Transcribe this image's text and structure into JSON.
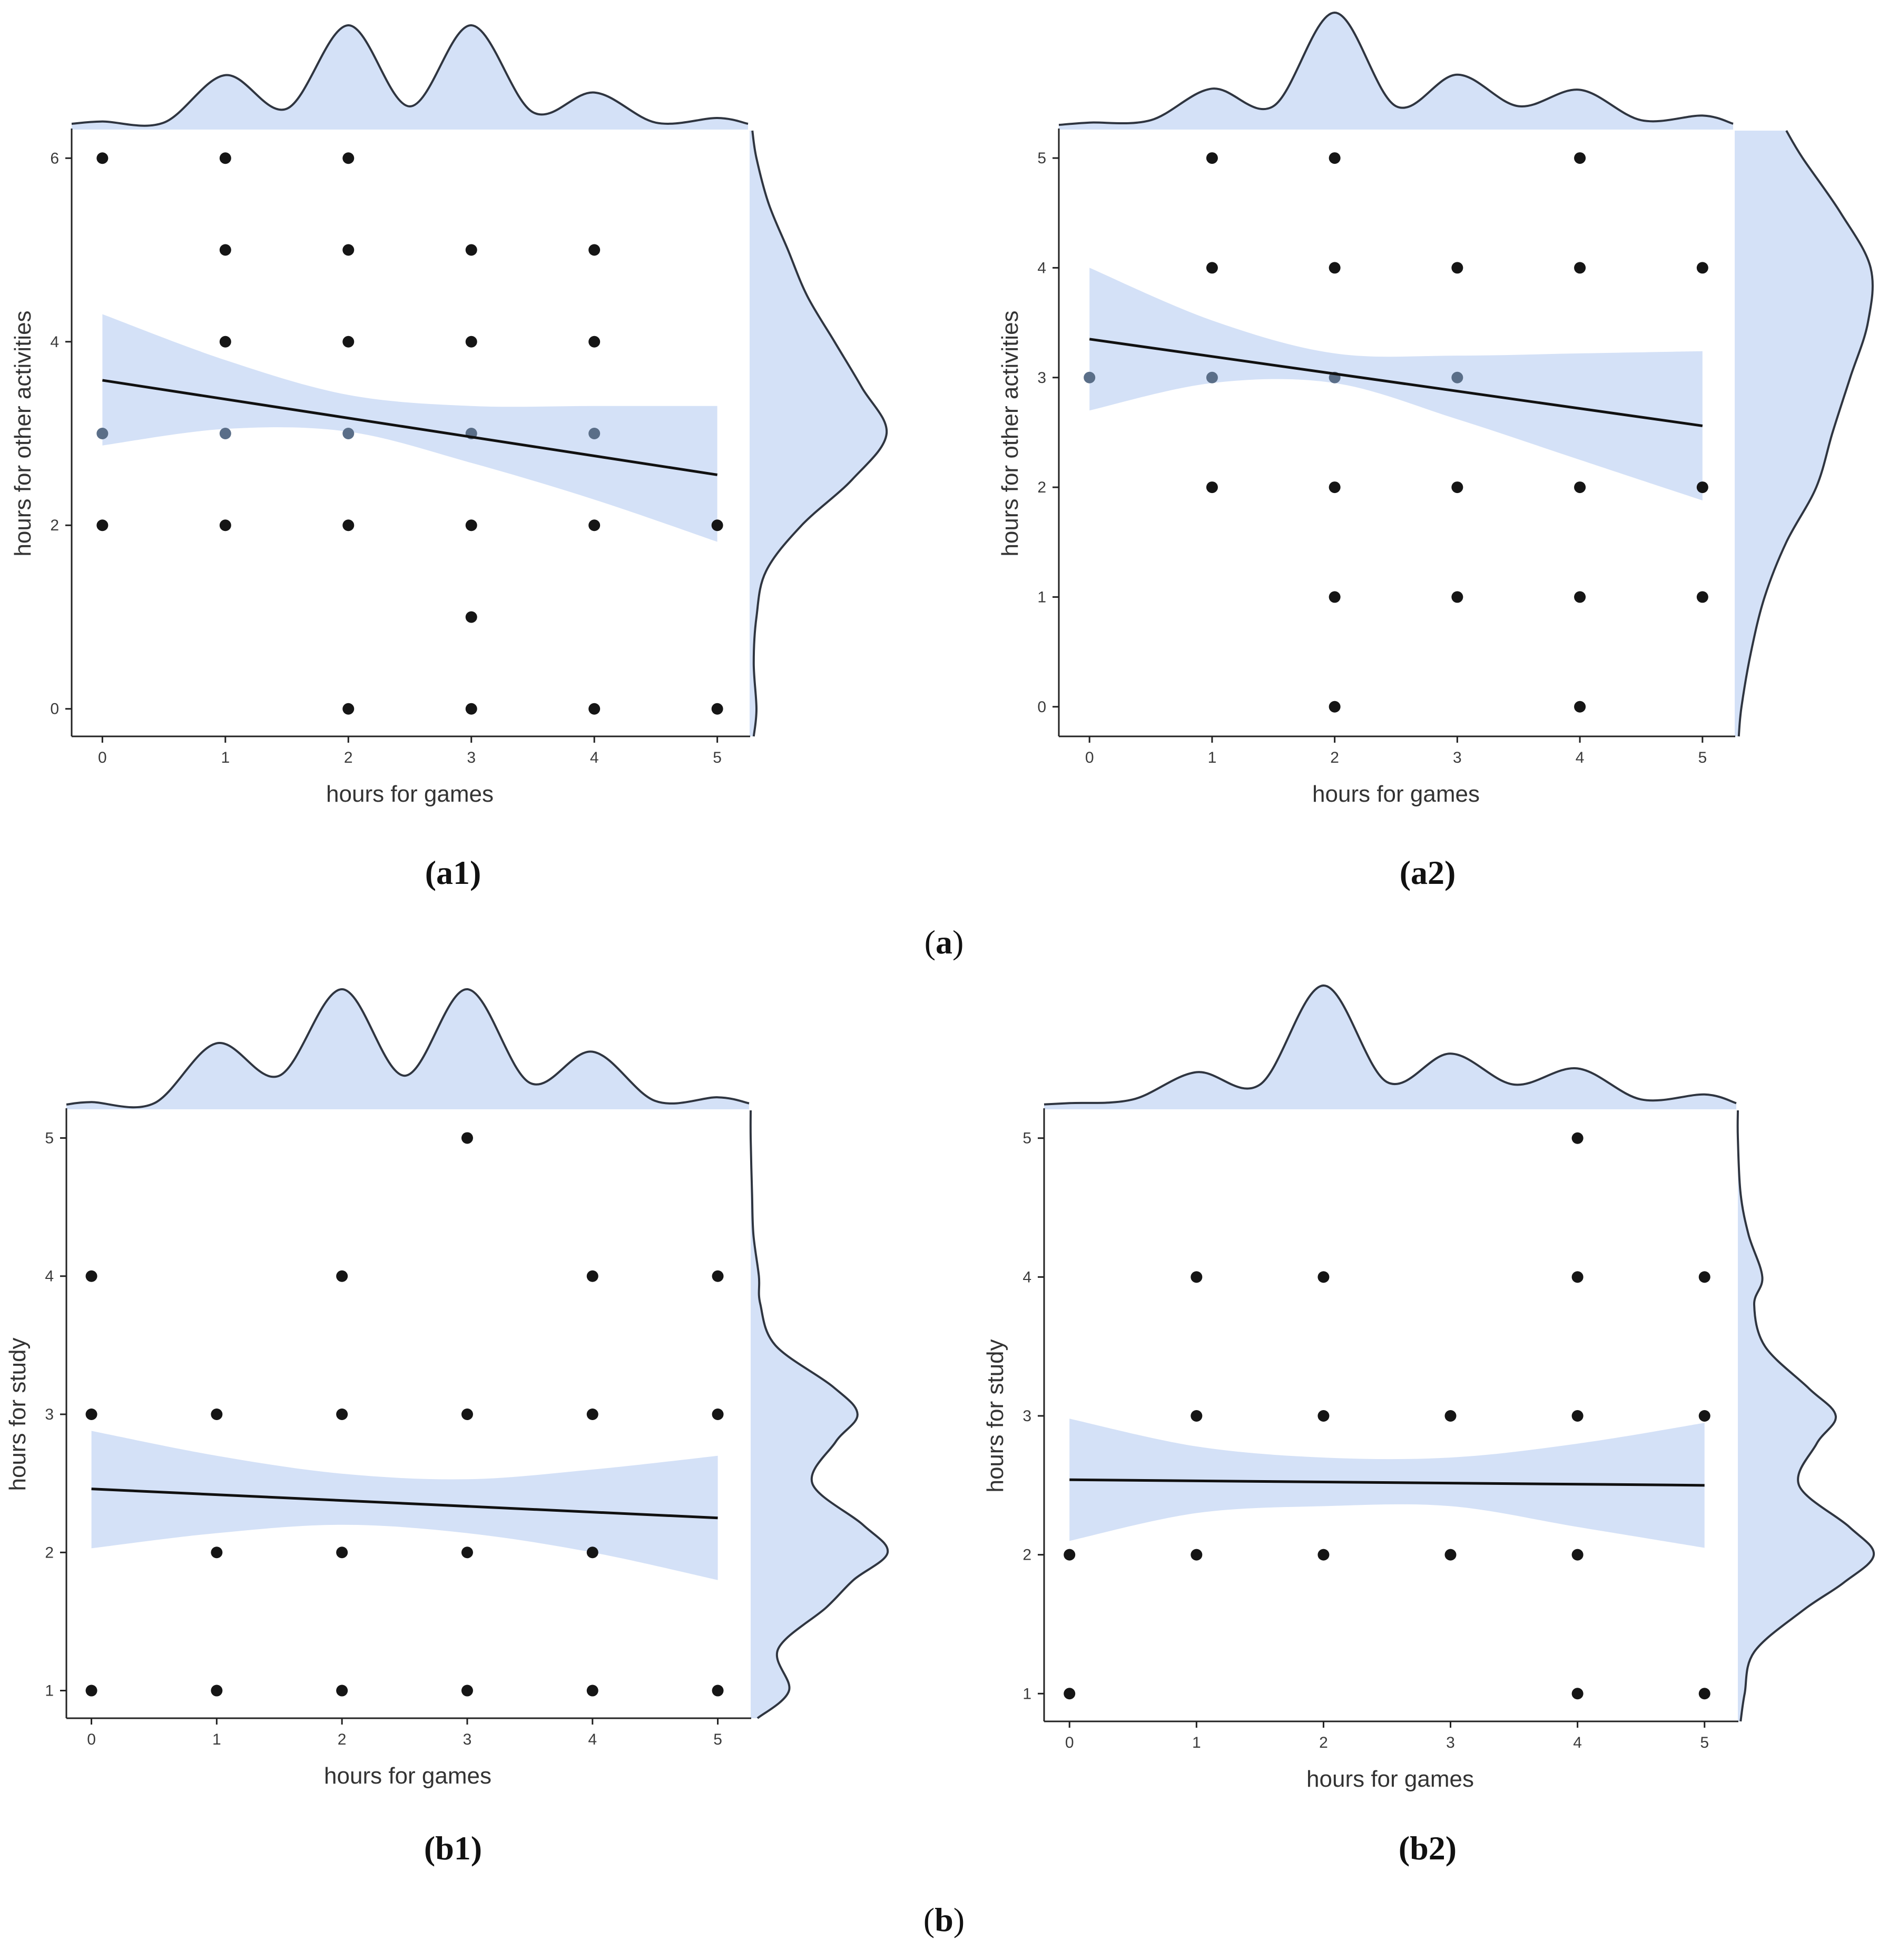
{
  "colors": {
    "band": "#d4e1f7",
    "line": "#111111",
    "point": "#151515",
    "point_light": "#5a6e88",
    "density_stroke": "#2f3540",
    "axis": "#222222"
  },
  "group_labels": [
    {
      "open": "(",
      "letter": "a",
      "close": ")"
    },
    {
      "open": "(",
      "letter": "b",
      "close": ")"
    }
  ],
  "chart_data": [
    {
      "id": "a1",
      "type": "scatter",
      "panel_label": "(a1)",
      "xlabel": "hours for games",
      "ylabel": "hours for other activities",
      "xlim": [
        -0.25,
        5.25
      ],
      "ylim": [
        -0.3,
        6.3
      ],
      "xticks": [
        0,
        1,
        2,
        3,
        4,
        5
      ],
      "yticks": [
        0,
        2,
        4,
        6
      ],
      "points": [
        [
          0,
          6
        ],
        [
          1,
          6
        ],
        [
          2,
          6
        ],
        [
          1,
          5
        ],
        [
          2,
          5
        ],
        [
          3,
          5
        ],
        [
          4,
          5
        ],
        [
          1,
          4
        ],
        [
          2,
          4
        ],
        [
          3,
          4
        ],
        [
          4,
          4
        ],
        [
          0,
          3
        ],
        [
          1,
          3
        ],
        [
          2,
          3
        ],
        [
          3,
          3
        ],
        [
          4,
          3
        ],
        [
          0,
          2
        ],
        [
          1,
          2
        ],
        [
          2,
          2
        ],
        [
          3,
          2
        ],
        [
          4,
          2
        ],
        [
          5,
          2
        ],
        [
          3,
          1
        ],
        [
          2,
          0
        ],
        [
          3,
          0
        ],
        [
          4,
          0
        ],
        [
          5,
          0
        ]
      ],
      "fit": {
        "x": [
          0,
          5
        ],
        "y": [
          3.58,
          2.55
        ]
      },
      "band": {
        "x": [
          0,
          1,
          2,
          3,
          4,
          5
        ],
        "lower": [
          2.87,
          3.05,
          3.02,
          2.68,
          2.28,
          1.82
        ],
        "upper": [
          4.3,
          3.8,
          3.42,
          3.3,
          3.3,
          3.3
        ]
      },
      "x_density": {
        "x": [
          -0.25,
          0,
          0.5,
          1,
          1.5,
          2,
          2.5,
          3,
          3.5,
          4,
          4.5,
          5,
          5.25
        ],
        "d": [
          0.05,
          0.07,
          0.06,
          0.47,
          0.18,
          0.9,
          0.2,
          0.9,
          0.15,
          0.32,
          0.06,
          0.1,
          0.05
        ]
      },
      "y_density": {
        "y": [
          -0.3,
          0,
          0.5,
          1,
          1.5,
          2,
          2.5,
          3,
          3.5,
          4,
          4.5,
          5,
          5.5,
          6,
          6.3
        ],
        "d": [
          0.03,
          0.05,
          0.03,
          0.05,
          0.12,
          0.38,
          0.75,
          1.0,
          0.82,
          0.62,
          0.42,
          0.28,
          0.14,
          0.05,
          0.02
        ]
      }
    },
    {
      "id": "a2",
      "type": "scatter",
      "panel_label": "(a2)",
      "xlabel": "hours for games",
      "ylabel": "hours for other activities",
      "xlim": [
        -0.25,
        5.25
      ],
      "ylim": [
        -0.27,
        5.25
      ],
      "xticks": [
        0,
        1,
        2,
        3,
        4,
        5
      ],
      "yticks": [
        0,
        1,
        2,
        3,
        4,
        5
      ],
      "points": [
        [
          1,
          5
        ],
        [
          2,
          5
        ],
        [
          4,
          5
        ],
        [
          1,
          4
        ],
        [
          2,
          4
        ],
        [
          3,
          4
        ],
        [
          4,
          4
        ],
        [
          5,
          4
        ],
        [
          0,
          3
        ],
        [
          1,
          3
        ],
        [
          2,
          3
        ],
        [
          3,
          3
        ],
        [
          1,
          2
        ],
        [
          2,
          2
        ],
        [
          3,
          2
        ],
        [
          4,
          2
        ],
        [
          5,
          2
        ],
        [
          2,
          1
        ],
        [
          3,
          1
        ],
        [
          4,
          1
        ],
        [
          5,
          1
        ],
        [
          2,
          0
        ],
        [
          4,
          0
        ]
      ],
      "fit": {
        "x": [
          0,
          5
        ],
        "y": [
          3.35,
          2.56
        ]
      },
      "band": {
        "x": [
          0,
          1,
          2,
          3,
          4,
          5
        ],
        "lower": [
          2.7,
          2.95,
          2.95,
          2.62,
          2.25,
          1.88
        ],
        "upper": [
          4.0,
          3.52,
          3.22,
          3.2,
          3.22,
          3.24
        ]
      },
      "x_density": {
        "x": [
          -0.25,
          0,
          0.5,
          1,
          1.5,
          2,
          2.5,
          3,
          3.5,
          4,
          4.5,
          5,
          5.25
        ],
        "d": [
          0.04,
          0.06,
          0.08,
          0.35,
          0.2,
          1.0,
          0.2,
          0.47,
          0.2,
          0.34,
          0.08,
          0.12,
          0.05
        ]
      },
      "y_density": {
        "y": [
          -0.27,
          0,
          0.5,
          1,
          1.5,
          2,
          2.5,
          3,
          3.5,
          4,
          4.5,
          5,
          5.25
        ],
        "d": [
          0.03,
          0.05,
          0.12,
          0.22,
          0.38,
          0.6,
          0.72,
          0.85,
          0.98,
          1.0,
          0.78,
          0.5,
          0.38
        ]
      }
    },
    {
      "id": "b1",
      "type": "scatter",
      "panel_label": "(b1)",
      "xlabel": "hours for games",
      "ylabel": "hours for study",
      "xlim": [
        -0.2,
        5.25
      ],
      "ylim": [
        0.8,
        5.2
      ],
      "xticks": [
        0,
        1,
        2,
        3,
        4,
        5
      ],
      "yticks": [
        1,
        2,
        3,
        4,
        5
      ],
      "points": [
        [
          3,
          5
        ],
        [
          0,
          4
        ],
        [
          2,
          4
        ],
        [
          4,
          4
        ],
        [
          5,
          4
        ],
        [
          0,
          3
        ],
        [
          1,
          3
        ],
        [
          2,
          3
        ],
        [
          3,
          3
        ],
        [
          4,
          3
        ],
        [
          5,
          3
        ],
        [
          1,
          2
        ],
        [
          2,
          2
        ],
        [
          3,
          2
        ],
        [
          4,
          2
        ],
        [
          0,
          1
        ],
        [
          1,
          1
        ],
        [
          2,
          1
        ],
        [
          3,
          1
        ],
        [
          4,
          1
        ],
        [
          5,
          1
        ]
      ],
      "fit": {
        "x": [
          0,
          5
        ],
        "y": [
          2.46,
          2.25
        ]
      },
      "band": {
        "x": [
          0,
          1,
          2,
          3,
          4,
          5
        ],
        "lower": [
          2.03,
          2.14,
          2.2,
          2.14,
          2.0,
          1.8
        ],
        "upper": [
          2.88,
          2.7,
          2.57,
          2.53,
          2.6,
          2.7
        ]
      },
      "x_density": {
        "x": [
          -0.2,
          0,
          0.5,
          1,
          1.5,
          2,
          2.5,
          3,
          3.5,
          4,
          4.5,
          5,
          5.25
        ],
        "d": [
          0.04,
          0.06,
          0.05,
          0.55,
          0.28,
          1.0,
          0.28,
          1.0,
          0.22,
          0.48,
          0.07,
          0.1,
          0.05
        ]
      },
      "y_density": {
        "y": [
          0.8,
          1.0,
          1.3,
          1.6,
          1.8,
          2.0,
          2.2,
          2.5,
          2.8,
          3.0,
          3.2,
          3.5,
          3.8,
          4.0,
          4.3,
          4.6,
          5.0,
          5.2
        ],
        "d": [
          0.05,
          0.28,
          0.2,
          0.55,
          0.75,
          1.0,
          0.82,
          0.45,
          0.62,
          0.78,
          0.6,
          0.18,
          0.07,
          0.06,
          0.02,
          0.01,
          0.0,
          0.0
        ]
      }
    },
    {
      "id": "b2",
      "type": "scatter",
      "panel_label": "(b2)",
      "xlabel": "hours for games",
      "ylabel": "hours for study",
      "xlim": [
        -0.2,
        5.25
      ],
      "ylim": [
        0.8,
        5.2
      ],
      "xticks": [
        0,
        1,
        2,
        3,
        4,
        5
      ],
      "yticks": [
        1,
        2,
        3,
        4,
        5
      ],
      "points": [
        [
          4,
          5
        ],
        [
          1,
          4
        ],
        [
          2,
          4
        ],
        [
          4,
          4
        ],
        [
          5,
          4
        ],
        [
          1,
          3
        ],
        [
          2,
          3
        ],
        [
          3,
          3
        ],
        [
          4,
          3
        ],
        [
          5,
          3
        ],
        [
          0,
          2
        ],
        [
          1,
          2
        ],
        [
          2,
          2
        ],
        [
          3,
          2
        ],
        [
          4,
          2
        ],
        [
          0,
          1
        ],
        [
          4,
          1
        ],
        [
          5,
          1
        ]
      ],
      "fit": {
        "x": [
          0,
          5
        ],
        "y": [
          2.54,
          2.5
        ]
      },
      "band": {
        "x": [
          0,
          1,
          2,
          3,
          4,
          5
        ],
        "lower": [
          2.1,
          2.3,
          2.35,
          2.35,
          2.2,
          2.05
        ],
        "upper": [
          2.98,
          2.78,
          2.7,
          2.7,
          2.8,
          2.95
        ]
      },
      "x_density": {
        "x": [
          -0.2,
          0,
          0.5,
          1,
          1.5,
          2,
          2.5,
          3,
          3.5,
          4,
          4.5,
          5,
          5.25
        ],
        "d": [
          0.04,
          0.05,
          0.08,
          0.3,
          0.2,
          1.0,
          0.22,
          0.45,
          0.2,
          0.33,
          0.08,
          0.12,
          0.05
        ]
      },
      "y_density": {
        "y": [
          0.8,
          1.0,
          1.3,
          1.6,
          1.8,
          2.0,
          2.2,
          2.5,
          2.8,
          3.0,
          3.2,
          3.5,
          3.8,
          4.0,
          4.3,
          4.6,
          5.0,
          5.2
        ],
        "d": [
          0.02,
          0.05,
          0.12,
          0.48,
          0.78,
          1.0,
          0.82,
          0.45,
          0.58,
          0.72,
          0.52,
          0.2,
          0.12,
          0.18,
          0.08,
          0.02,
          0.0,
          0.0
        ]
      }
    }
  ]
}
